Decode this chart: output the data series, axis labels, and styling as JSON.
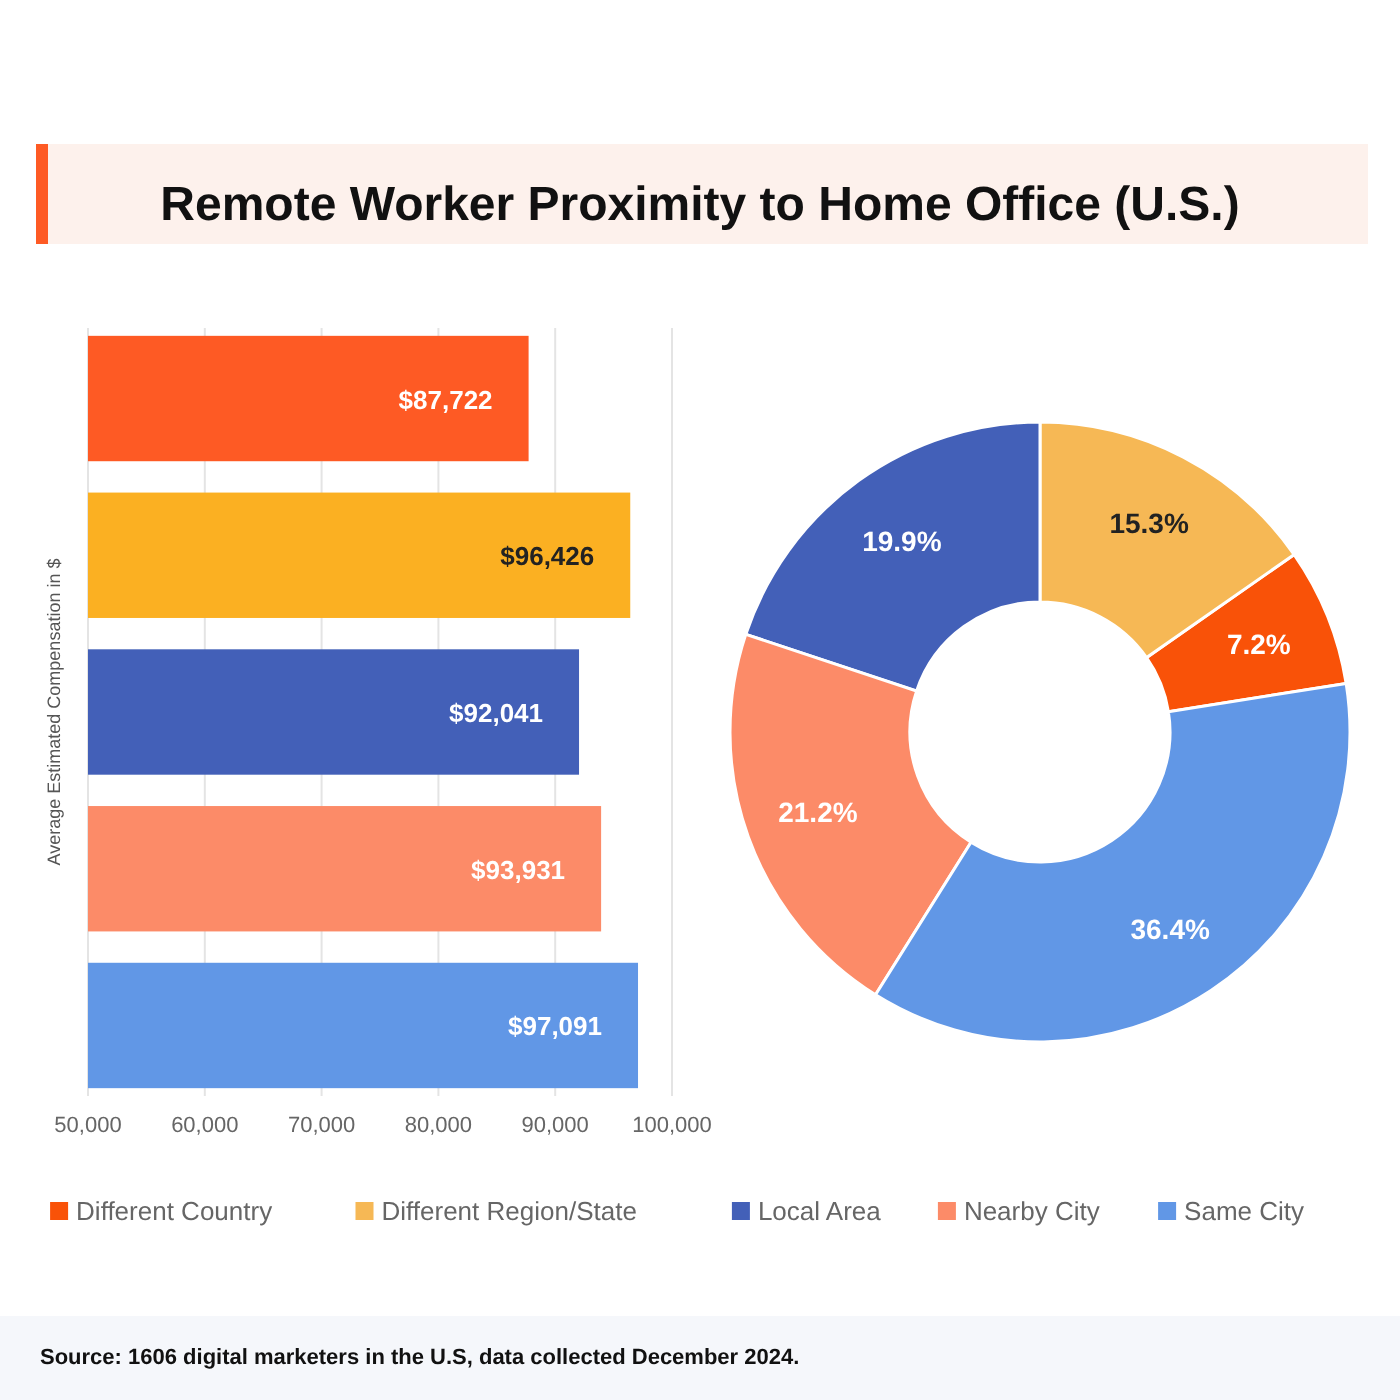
{
  "chart_data": [
    {
      "type": "bar",
      "title": "Remote Worker Proximity to Home Office (U.S.)",
      "ylabel": "Average Estimated Compensation in $",
      "orientation": "horizontal",
      "categories": [
        null,
        null,
        null,
        null,
        null
      ],
      "values": [
        87722,
        96426,
        92041,
        93931,
        97091
      ],
      "colors": [
        "#fe5a24",
        "#fbb022",
        "#4360b8",
        "#fc8b68",
        "#6197e6"
      ],
      "value_labels": [
        "$87,722",
        "$96,426",
        "$92,041",
        "$93,931",
        "$97,091"
      ],
      "xlim": [
        50000,
        100000
      ],
      "xticks": [
        {
          "value": 50000,
          "label": "50,000"
        },
        {
          "value": 60000,
          "label": "60,000"
        },
        {
          "value": 70000,
          "label": "70,000"
        },
        {
          "value": 80000,
          "label": "80,000"
        },
        {
          "value": 90000,
          "label": "90,000"
        },
        {
          "value": 100000,
          "label": "100,000"
        }
      ],
      "grid": "x"
    },
    {
      "type": "donut",
      "categories": [
        "Different Country",
        "Different Region/State",
        "Local Area",
        "Nearby City",
        "Same City"
      ],
      "values": [
        7.2,
        15.3,
        19.9,
        21.2,
        36.4
      ],
      "colors": [
        "#f95208",
        "#f6b855",
        "#4360b8",
        "#fc8b68",
        "#6197e6"
      ],
      "value_labels": [
        "7.2%",
        "15.3%",
        "19.9%",
        "21.2%",
        "36.4%"
      ],
      "legend": "bottom",
      "annotations": [
        "Source: 1606 digital marketers in the U.S, data collected December 2024."
      ]
    }
  ]
}
